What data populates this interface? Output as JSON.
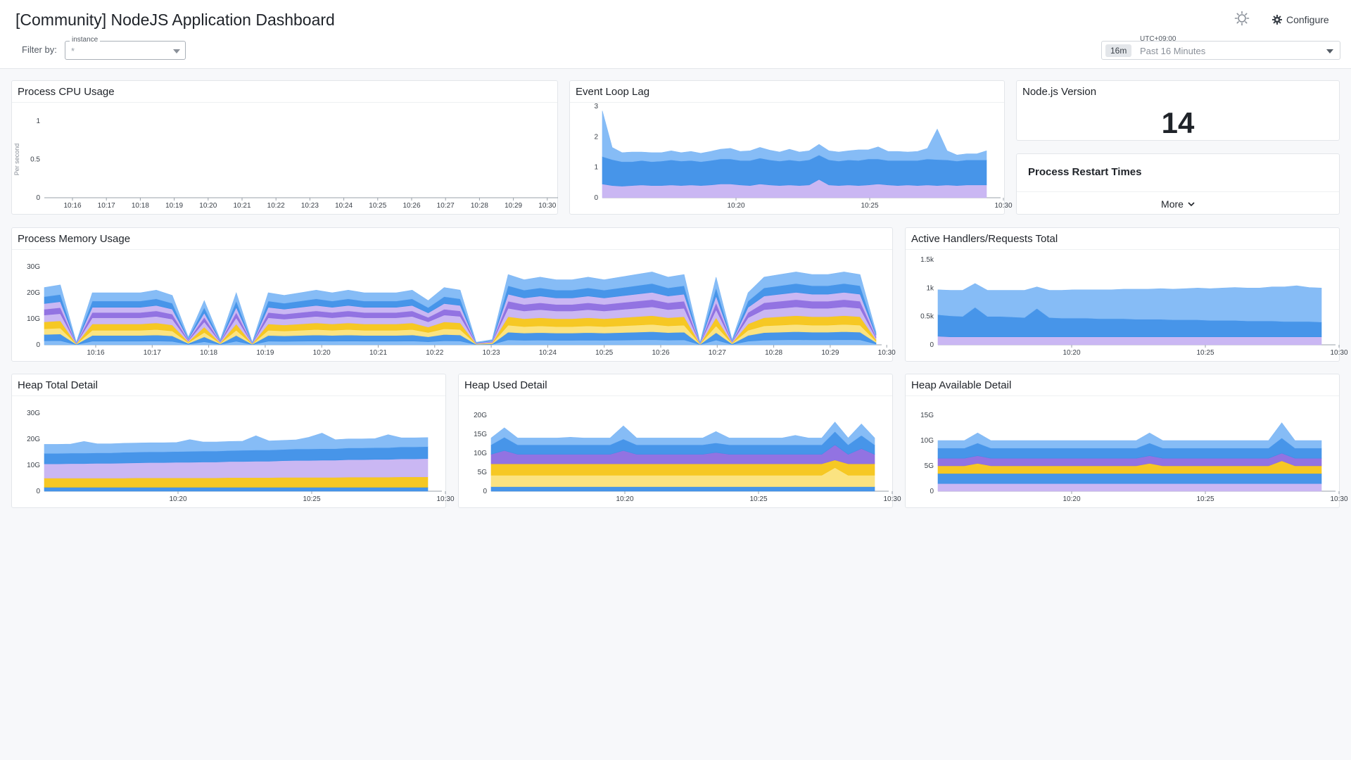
{
  "header": {
    "title": "[Community] NodeJS Application Dashboard",
    "filter_label": "Filter by:",
    "instance_legend": "instance",
    "instance_value": "*",
    "configure_label": "Configure",
    "timezone": "UTC+09:00",
    "time_badge": "16m",
    "time_label": "Past 16 Minutes",
    "icons": {
      "theme": "sun-gear-icon",
      "configure": "gear-icon",
      "dropdown": "chevron-down-icon"
    }
  },
  "panels": {
    "cpu": {
      "title": "Process CPU Usage"
    },
    "event_loop": {
      "title": "Event Loop Lag"
    },
    "node_version": {
      "title": "Node.js Version",
      "value": "14"
    },
    "restart": {
      "title": "Process Restart Times",
      "more_label": "More"
    },
    "memory": {
      "title": "Process Memory Usage"
    },
    "handlers": {
      "title": "Active Handlers/Requests Total"
    },
    "heap_total": {
      "title": "Heap Total Detail"
    },
    "heap_used": {
      "title": "Heap Used Detail"
    },
    "heap_avail": {
      "title": "Heap Available Detail"
    }
  },
  "colors": {
    "light_blue": "#7fb8f5",
    "blue": "#3d8fe8",
    "purple": "#8c6be0",
    "lavender": "#c7b3f2",
    "yellow": "#f5c518",
    "pale_yellow": "#fbe27a"
  },
  "chart_data": [
    {
      "id": "cpu",
      "type": "line",
      "title": "Process CPU Usage",
      "ylabel": "Per second",
      "ylim": [
        0,
        1
      ],
      "yticks": [
        "1",
        "0.5",
        "0"
      ],
      "categories": [
        "10:16",
        "10:17",
        "10:18",
        "10:19",
        "10:20",
        "10:21",
        "10:22",
        "10:23",
        "10:24",
        "10:25",
        "10:26",
        "10:27",
        "10:28",
        "10:29",
        "10:30"
      ],
      "series": []
    },
    {
      "id": "event_loop",
      "type": "area",
      "title": "Event Loop Lag",
      "ylim": [
        0,
        3
      ],
      "yticks": [
        "3",
        "2",
        "1",
        "0"
      ],
      "xticks": [
        "10:20",
        "10:25",
        "10:30"
      ],
      "series": [
        {
          "color": "#c7b3f2",
          "values": [
            0.45,
            0.4,
            0.38,
            0.4,
            0.42,
            0.4,
            0.4,
            0.42,
            0.4,
            0.42,
            0.4,
            0.42,
            0.45,
            0.45,
            0.42,
            0.4,
            0.45,
            0.42,
            0.4,
            0.42,
            0.4,
            0.42,
            0.6,
            0.42,
            0.4,
            0.42,
            0.4,
            0.42,
            0.45,
            0.42,
            0.4,
            0.42,
            0.4,
            0.42,
            0.4,
            0.42,
            0.4,
            0.42,
            0.42,
            0.42
          ]
        },
        {
          "color": "#3d8fe8",
          "values": [
            0.9,
            0.85,
            0.8,
            0.78,
            0.8,
            0.78,
            0.8,
            0.82,
            0.8,
            0.8,
            0.78,
            0.8,
            0.82,
            0.82,
            0.8,
            0.82,
            0.85,
            0.82,
            0.8,
            0.82,
            0.8,
            0.82,
            0.8,
            0.82,
            0.8,
            0.82,
            0.82,
            0.85,
            0.82,
            0.8,
            0.82,
            0.8,
            0.82,
            0.85,
            0.85,
            0.82,
            0.8,
            0.82,
            0.82,
            0.82
          ]
        },
        {
          "color": "#7fb8f5",
          "values": [
            1.5,
            0.4,
            0.3,
            0.32,
            0.28,
            0.3,
            0.28,
            0.3,
            0.28,
            0.3,
            0.28,
            0.3,
            0.32,
            0.35,
            0.3,
            0.32,
            0.35,
            0.32,
            0.3,
            0.35,
            0.3,
            0.3,
            0.35,
            0.3,
            0.3,
            0.3,
            0.35,
            0.3,
            0.4,
            0.3,
            0.3,
            0.28,
            0.3,
            0.35,
            1.0,
            0.3,
            0.2,
            0.2,
            0.2,
            0.3
          ]
        }
      ]
    },
    {
      "id": "memory",
      "type": "area",
      "title": "Process Memory Usage",
      "ylim": [
        0,
        30
      ],
      "yticks": [
        "30G",
        "20G",
        "10G",
        "0"
      ],
      "xticks": [
        "10:16",
        "10:17",
        "10:18",
        "10:19",
        "10:20",
        "10:21",
        "10:22",
        "10:23",
        "10:24",
        "10:25",
        "10:26",
        "10:27",
        "10:28",
        "10:29",
        "10:30"
      ],
      "env": [
        22,
        23,
        1,
        20,
        20,
        20,
        20,
        21,
        19,
        3,
        17,
        2,
        20,
        1,
        20,
        19,
        20,
        21,
        20,
        21,
        20,
        20,
        20,
        21,
        17,
        22,
        21,
        1,
        2,
        27,
        25,
        26,
        25,
        25,
        26,
        25,
        26,
        27,
        28,
        26,
        27,
        1,
        26,
        2,
        20,
        26,
        27,
        28,
        27,
        27,
        28,
        27,
        5
      ],
      "series": [
        {
          "color": "#7fb8f5",
          "share": 0.07
        },
        {
          "color": "#3d8fe8",
          "share": 0.11
        },
        {
          "color": "#fbe27a",
          "share": 0.1
        },
        {
          "color": "#f5c518",
          "share": 0.12
        },
        {
          "color": "#c7b3f2",
          "share": 0.12
        },
        {
          "color": "#8c6be0",
          "share": 0.1
        },
        {
          "color": "#c7b3f2",
          "share": 0.1
        },
        {
          "color": "#3d8fe8",
          "share": 0.12
        },
        {
          "color": "#7fb8f5",
          "share": 0.16
        }
      ]
    },
    {
      "id": "handlers",
      "type": "area",
      "title": "Active Handlers/Requests Total",
      "ylim": [
        0,
        1500
      ],
      "yticks": [
        "1.5k",
        "1k",
        "0.5k",
        "0"
      ],
      "xticks": [
        "10:20",
        "10:25",
        "10:30"
      ],
      "series": [
        {
          "color": "#c7b3f2",
          "values": [
            150,
            140,
            140,
            140,
            140,
            140,
            140,
            140,
            140,
            140,
            140,
            140,
            140,
            140,
            140,
            140,
            140,
            140,
            140,
            140,
            140,
            140,
            140,
            140,
            140,
            140,
            140,
            140,
            140,
            140,
            140,
            140
          ]
        },
        {
          "color": "#3d8fe8",
          "values": [
            380,
            370,
            360,
            520,
            360,
            360,
            350,
            340,
            500,
            340,
            330,
            330,
            330,
            320,
            320,
            320,
            310,
            310,
            310,
            300,
            300,
            300,
            290,
            290,
            290,
            280,
            280,
            280,
            270,
            270,
            270,
            260
          ]
        },
        {
          "color": "#7fb8f5",
          "values": [
            440,
            450,
            460,
            420,
            460,
            460,
            470,
            480,
            380,
            480,
            490,
            500,
            500,
            510,
            510,
            520,
            530,
            530,
            540,
            540,
            550,
            560,
            560,
            570,
            580,
            580,
            580,
            600,
            610,
            630,
            600,
            600
          ]
        }
      ]
    },
    {
      "id": "heap_total",
      "type": "area",
      "title": "Heap Total Detail",
      "ylim": [
        0,
        30
      ],
      "yticks": [
        "30G",
        "20G",
        "10G",
        "0"
      ],
      "xticks": [
        "10:20",
        "10:25",
        "10:30"
      ],
      "series": [
        {
          "color": "#3d8fe8",
          "values": [
            1.5,
            1.5,
            1.5,
            1.5,
            1.5,
            1.5,
            1.5,
            1.5,
            1.5,
            1.5,
            1.5,
            1.5,
            1.5,
            1.5,
            1.5,
            1.5,
            1.5,
            1.5,
            1.5,
            1.5,
            1.5,
            1.5,
            1.5,
            1.5,
            1.5,
            1.5,
            1.5,
            1.5,
            1.5,
            1.5
          ]
        },
        {
          "color": "#f5c518",
          "values": [
            3.5,
            3.5,
            3.5,
            3.5,
            3.5,
            3.5,
            3.5,
            3.6,
            3.6,
            3.6,
            3.6,
            3.6,
            3.6,
            3.6,
            3.7,
            3.7,
            3.7,
            3.7,
            3.8,
            3.8,
            3.8,
            3.8,
            3.8,
            3.9,
            3.9,
            3.9,
            3.9,
            4.0,
            4.0,
            4.0
          ]
        },
        {
          "color": "#c7b3f2",
          "values": [
            5.5,
            5.5,
            5.6,
            5.6,
            5.7,
            5.7,
            5.8,
            5.8,
            5.9,
            5.9,
            6.0,
            6.0,
            6.1,
            6.1,
            6.2,
            6.2,
            6.3,
            6.3,
            6.4,
            6.5,
            6.5,
            6.6,
            6.6,
            6.7,
            6.7,
            6.8,
            6.8,
            6.9,
            6.9,
            7.0
          ]
        },
        {
          "color": "#3d8fe8",
          "values": [
            4.0,
            4.0,
            4.0,
            4.0,
            4.0,
            4.0,
            4.1,
            4.1,
            4.1,
            4.1,
            4.1,
            4.2,
            4.2,
            4.2,
            4.2,
            4.3,
            4.3,
            4.3,
            4.3,
            4.4,
            4.4,
            4.4,
            4.4,
            4.5,
            4.5,
            4.5,
            4.5,
            4.6,
            4.6,
            4.6
          ]
        },
        {
          "color": "#7fb8f5",
          "values": [
            3.5,
            3.5,
            3.5,
            4.5,
            3.5,
            3.5,
            3.5,
            3.5,
            3.5,
            3.5,
            3.5,
            4.5,
            3.5,
            3.5,
            3.5,
            3.5,
            5.5,
            3.5,
            3.5,
            3.5,
            4.5,
            6.0,
            3.5,
            3.5,
            3.5,
            3.5,
            5.0,
            3.5,
            3.5,
            3.5
          ]
        }
      ]
    },
    {
      "id": "heap_used",
      "type": "area",
      "title": "Heap Used Detail",
      "ylim": [
        0,
        20
      ],
      "yticks": [
        "20G",
        "15G",
        "10G",
        "5G",
        "0"
      ],
      "xticks": [
        "10:20",
        "10:25",
        "10:30"
      ],
      "series": [
        {
          "color": "#3d8fe8",
          "values": [
            1.2,
            1.2,
            1.2,
            1.2,
            1.2,
            1.2,
            1.2,
            1.2,
            1.2,
            1.2,
            1.2,
            1.2,
            1.2,
            1.2,
            1.2,
            1.2,
            1.2,
            1.2,
            1.2,
            1.2,
            1.2,
            1.2,
            1.2,
            1.2,
            1.2,
            1.2,
            1.2,
            1.2,
            1.2,
            1.2
          ]
        },
        {
          "color": "#fbe27a",
          "values": [
            3.0,
            3.0,
            3.0,
            3.0,
            3.0,
            3.0,
            3.0,
            3.0,
            3.0,
            3.0,
            3.0,
            3.0,
            3.0,
            3.0,
            3.0,
            3.0,
            3.0,
            3.0,
            3.0,
            3.0,
            3.0,
            3.0,
            3.0,
            3.0,
            3.0,
            3.0,
            5.0,
            3.0,
            3.0,
            3.0
          ]
        },
        {
          "color": "#f5c518",
          "values": [
            3.0,
            3.0,
            3.0,
            3.0,
            3.0,
            3.0,
            3.0,
            3.0,
            3.0,
            3.0,
            3.0,
            3.0,
            3.0,
            3.0,
            3.0,
            3.0,
            3.0,
            3.0,
            3.0,
            3.0,
            3.0,
            3.0,
            3.0,
            3.0,
            3.0,
            3.0,
            2.0,
            3.0,
            3.0,
            3.0
          ]
        },
        {
          "color": "#8c6be0",
          "values": [
            2.5,
            3.5,
            2.5,
            2.5,
            2.5,
            2.5,
            2.5,
            2.5,
            2.5,
            2.5,
            3.5,
            2.5,
            2.5,
            2.5,
            2.5,
            2.5,
            2.5,
            3.0,
            2.5,
            2.5,
            2.5,
            2.5,
            2.5,
            2.5,
            2.5,
            2.5,
            4.0,
            2.5,
            4.0,
            2.5
          ]
        },
        {
          "color": "#3d8fe8",
          "values": [
            2.5,
            3.5,
            2.5,
            2.5,
            2.5,
            2.5,
            2.5,
            2.5,
            2.5,
            2.5,
            3.0,
            2.5,
            2.5,
            2.5,
            2.5,
            2.5,
            2.5,
            2.5,
            2.5,
            2.5,
            2.5,
            2.5,
            2.5,
            2.5,
            2.5,
            2.5,
            3.5,
            2.5,
            3.5,
            2.5
          ]
        },
        {
          "color": "#7fb8f5",
          "values": [
            1.8,
            2.5,
            1.8,
            1.8,
            1.8,
            1.8,
            2.0,
            1.8,
            1.8,
            1.8,
            3.5,
            1.8,
            1.8,
            1.8,
            1.8,
            1.8,
            1.8,
            3.0,
            1.8,
            1.8,
            1.8,
            1.8,
            1.8,
            2.5,
            1.8,
            1.8,
            2.5,
            1.8,
            3.0,
            1.8
          ]
        }
      ]
    },
    {
      "id": "heap_avail",
      "type": "area",
      "title": "Heap Available Detail",
      "ylim": [
        0,
        15
      ],
      "yticks": [
        "15G",
        "10G",
        "5G",
        "0"
      ],
      "xticks": [
        "10:20",
        "10:25",
        "10:30"
      ],
      "series": [
        {
          "color": "#c7b3f2",
          "values": [
            1.5,
            1.5,
            1.5,
            1.5,
            1.5,
            1.5,
            1.5,
            1.5,
            1.5,
            1.5,
            1.5,
            1.5,
            1.5,
            1.5,
            1.5,
            1.5,
            1.5,
            1.5,
            1.5,
            1.5,
            1.5,
            1.5,
            1.5,
            1.5,
            1.5,
            1.5,
            1.5,
            1.5,
            1.5,
            1.5
          ]
        },
        {
          "color": "#3d8fe8",
          "values": [
            2.0,
            2.0,
            2.0,
            2.0,
            2.0,
            2.0,
            2.0,
            2.0,
            2.0,
            2.0,
            2.0,
            2.0,
            2.0,
            2.0,
            2.0,
            2.0,
            2.0,
            2.0,
            2.0,
            2.0,
            2.0,
            2.0,
            2.0,
            2.0,
            2.0,
            2.0,
            2.0,
            2.0,
            2.0,
            2.0
          ]
        },
        {
          "color": "#f5c518",
          "values": [
            1.5,
            1.5,
            1.5,
            2.0,
            1.5,
            1.5,
            1.5,
            1.5,
            1.5,
            1.5,
            1.5,
            1.5,
            1.5,
            1.5,
            1.5,
            1.5,
            2.0,
            1.5,
            1.5,
            1.5,
            1.5,
            1.5,
            1.5,
            1.5,
            1.5,
            1.5,
            2.5,
            1.5,
            1.5,
            1.5
          ]
        },
        {
          "color": "#8c6be0",
          "values": [
            1.5,
            1.5,
            1.5,
            1.5,
            1.5,
            1.5,
            1.5,
            1.5,
            1.5,
            1.5,
            1.5,
            1.5,
            1.5,
            1.5,
            1.5,
            1.5,
            1.5,
            1.5,
            1.5,
            1.5,
            1.5,
            1.5,
            1.5,
            1.5,
            1.5,
            1.5,
            1.5,
            1.5,
            1.5,
            1.5
          ]
        },
        {
          "color": "#3d8fe8",
          "values": [
            2.0,
            2.0,
            2.0,
            2.5,
            2.0,
            2.0,
            2.0,
            2.0,
            2.0,
            2.0,
            2.0,
            2.0,
            2.0,
            2.0,
            2.0,
            2.0,
            2.5,
            2.0,
            2.0,
            2.0,
            2.0,
            2.0,
            2.0,
            2.0,
            2.0,
            2.0,
            3.0,
            2.0,
            2.0,
            2.0
          ]
        },
        {
          "color": "#7fb8f5",
          "values": [
            1.5,
            1.5,
            1.5,
            2.0,
            1.5,
            1.5,
            1.5,
            1.5,
            1.5,
            1.5,
            1.5,
            1.5,
            1.5,
            1.5,
            1.5,
            1.5,
            2.0,
            1.5,
            1.5,
            1.5,
            1.5,
            1.5,
            1.5,
            1.5,
            1.5,
            1.5,
            3.0,
            1.5,
            1.5,
            1.5
          ]
        }
      ]
    }
  ]
}
